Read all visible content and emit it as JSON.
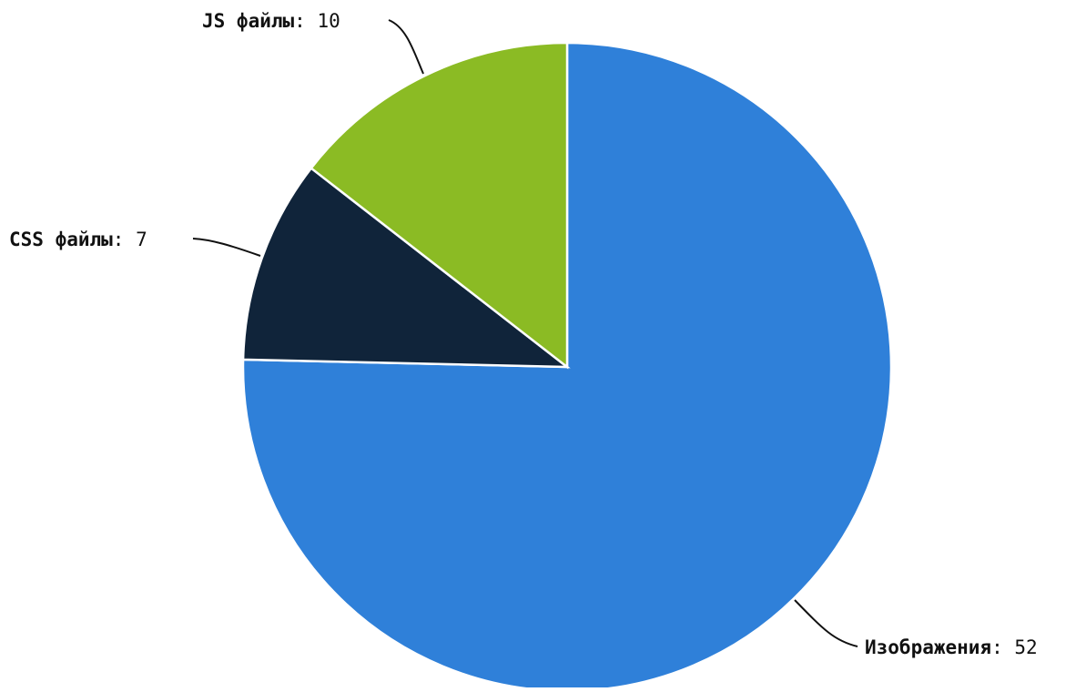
{
  "chart_data": {
    "type": "pie",
    "title": "",
    "start_angle_deg": 0,
    "direction": "clockwise",
    "slices": [
      {
        "label": "Изображения",
        "value": 52,
        "color": "#2f80d9"
      },
      {
        "label": "CSS файлы",
        "value": 7,
        "color": "#10243a"
      },
      {
        "label": "JS файлы",
        "value": 10,
        "color": "#8bbb24"
      }
    ],
    "separator": ":",
    "legend": "none",
    "labels_outside": true
  }
}
